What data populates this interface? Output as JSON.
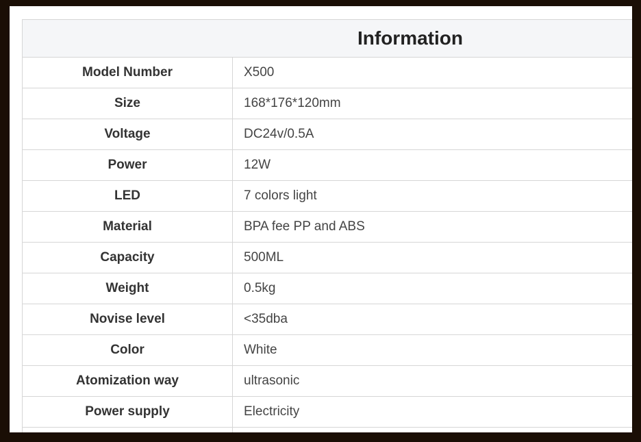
{
  "title": "Information",
  "rows": [
    {
      "label": "Model Number",
      "value": "X500"
    },
    {
      "label": "Size",
      "value": "168*176*120mm"
    },
    {
      "label": "Voltage",
      "value": "DC24v/0.5A"
    },
    {
      "label": "Power",
      "value": "12W"
    },
    {
      "label": "LED",
      "value": "7 colors light"
    },
    {
      "label": "Material",
      "value": "BPA fee PP and ABS"
    },
    {
      "label": "Capacity",
      "value": "500ML"
    },
    {
      "label": "Weight",
      "value": "0.5kg"
    },
    {
      "label": "Novise level",
      "value": "<35dba"
    },
    {
      "label": "Color",
      "value": "White"
    },
    {
      "label": "Atomization way",
      "value": "ultrasonic"
    },
    {
      "label": "Power supply",
      "value": "Electricity"
    }
  ]
}
